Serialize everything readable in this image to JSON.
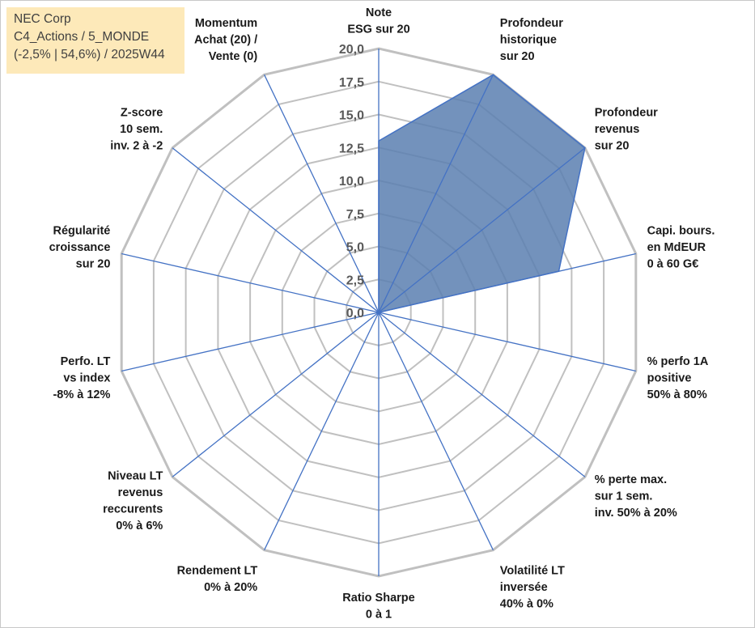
{
  "info": {
    "company": "NEC Corp",
    "portfolio": "C4_Actions / 5_MONDE",
    "stats": "(-2,5% | 54,6%) / 2025W44"
  },
  "colors": {
    "grid": "#c0c0c0",
    "spoke": "#4472c4",
    "fill": "#5b7fb0",
    "outline": "#4472c4"
  },
  "chart_data": {
    "type": "radar",
    "title": "",
    "rmin": 0,
    "rmax": 20,
    "tick_step": 2.5,
    "tick_labels": [
      "0,0",
      "2,5",
      "5,0",
      "7,5",
      "10,0",
      "12,5",
      "15,0",
      "17,5",
      "20,0"
    ],
    "axes": [
      {
        "label": [
          "Note",
          "ESG sur 20"
        ],
        "value": 13
      },
      {
        "label": [
          "Profondeur",
          "historique",
          "sur 20"
        ],
        "value": 20
      },
      {
        "label": [
          "Profondeur",
          "revenus",
          "sur 20"
        ],
        "value": 20
      },
      {
        "label": [
          "Capi. bours.",
          "en MdEUR",
          "0 à 60 G€"
        ],
        "value": 14
      },
      {
        "label": [
          "% perfo 1A",
          "positive",
          "50% à 80%"
        ],
        "value": 0
      },
      {
        "label": [
          "% perte max.",
          "sur 1 sem.",
          "inv. 50% à 20%"
        ],
        "value": 0
      },
      {
        "label": [
          "Volatilité LT",
          "inversée",
          "40% à 0%"
        ],
        "value": 0
      },
      {
        "label": [
          "Ratio Sharpe",
          "0 à 1"
        ],
        "value": 0
      },
      {
        "label": [
          "Rendement LT",
          "0% à 20%"
        ],
        "value": 0
      },
      {
        "label": [
          "Niveau LT",
          "revenus",
          "reccurents",
          "0% à 6%"
        ],
        "value": 0
      },
      {
        "label": [
          "Perfo. LT",
          "vs index",
          "-8% à 12%"
        ],
        "value": 0
      },
      {
        "label": [
          "Régularité",
          "croissance",
          "sur 20"
        ],
        "value": 0
      },
      {
        "label": [
          "Z-score",
          "10 sem.",
          "inv. 2 à -2"
        ],
        "value": 0
      },
      {
        "label": [
          "Momentum",
          "Achat (20) /",
          "Vente (0)"
        ],
        "value": 0
      }
    ]
  }
}
